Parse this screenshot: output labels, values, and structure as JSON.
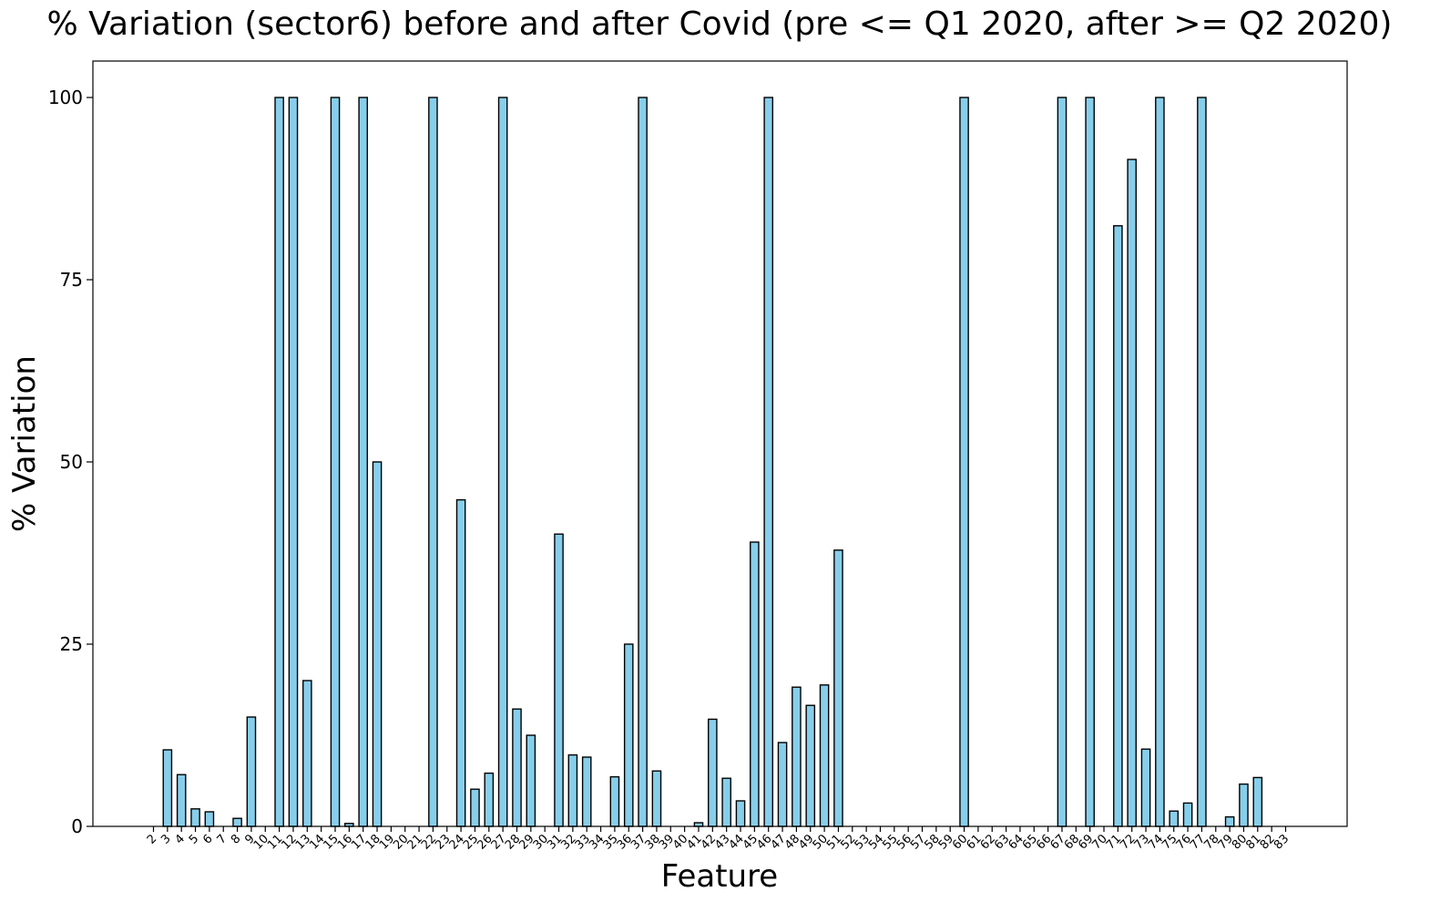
{
  "chart_data": {
    "type": "bar",
    "title": "% Variation (sector6) before and after Covid (pre <= Q1 2020, after >= Q2 2020)",
    "xlabel": "Feature",
    "ylabel": "% Variation",
    "ylim": [
      0,
      105
    ],
    "yticks": [
      0,
      25,
      50,
      75,
      100
    ],
    "grid": false,
    "bar_color": "#87ceeb",
    "edge_color": "#000000",
    "categories": [
      "2",
      "3",
      "4",
      "5",
      "6",
      "7",
      "8",
      "9",
      "10",
      "11",
      "12",
      "13",
      "14",
      "15",
      "16",
      "17",
      "18",
      "19",
      "20",
      "21",
      "22",
      "23",
      "24",
      "25",
      "26",
      "27",
      "28",
      "29",
      "30",
      "31",
      "32",
      "33",
      "34",
      "35",
      "36",
      "37",
      "38",
      "39",
      "40",
      "41",
      "42",
      "43",
      "44",
      "45",
      "46",
      "47",
      "48",
      "49",
      "50",
      "51",
      "52",
      "53",
      "54",
      "55",
      "56",
      "57",
      "58",
      "59",
      "60",
      "61",
      "62",
      "63",
      "64",
      "65",
      "66",
      "67",
      "68",
      "69",
      "70",
      "71",
      "72",
      "73",
      "74",
      "75",
      "76",
      "77",
      "78",
      "79",
      "80",
      "81",
      "82",
      "83"
    ],
    "values": [
      0,
      10.5,
      7.1,
      2.4,
      2.0,
      0,
      1.1,
      15.0,
      0,
      100,
      100,
      20.0,
      0,
      100,
      0.4,
      100,
      50.0,
      0,
      0,
      0,
      100,
      0,
      44.8,
      5.1,
      7.3,
      100,
      16.1,
      12.5,
      0,
      40.1,
      9.8,
      9.5,
      0,
      6.8,
      25.0,
      100,
      7.6,
      0,
      0,
      0.5,
      14.7,
      6.6,
      3.5,
      39.0,
      100,
      11.5,
      19.1,
      16.6,
      19.4,
      37.9,
      0,
      0,
      0,
      0,
      0,
      0,
      0,
      0,
      100,
      0,
      0,
      0,
      0,
      0,
      0,
      100,
      0,
      100,
      0,
      82.4,
      91.5,
      10.6,
      100,
      2.1,
      3.2,
      100,
      0,
      1.3,
      5.8,
      6.7,
      0,
      0
    ]
  }
}
